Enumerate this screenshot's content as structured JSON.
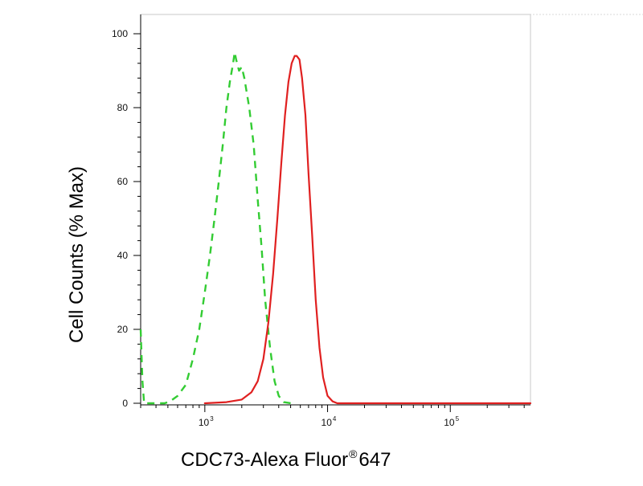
{
  "chart_data": {
    "type": "line",
    "xlabel": "CDC73-Alexa Fluor",
    "xlabel_superscript": "®",
    "xlabel_suffix": "647",
    "ylabel": "Cell Counts (% Max)",
    "xscale": "log",
    "xlim": [
      300,
      450000
    ],
    "ylim": [
      0,
      100
    ],
    "x_tick_labels": [
      {
        "value": 1000,
        "base": "10",
        "exp": "3"
      },
      {
        "value": 10000,
        "base": "10",
        "exp": "4"
      },
      {
        "value": 100000,
        "base": "10",
        "exp": "5"
      }
    ],
    "y_ticks": [
      0,
      20,
      40,
      60,
      80,
      100
    ],
    "grid": false,
    "legend": null,
    "series": [
      {
        "color": "#33cc33",
        "style": "dashed",
        "points": [
          [
            300,
            20
          ],
          [
            310,
            6
          ],
          [
            320,
            0
          ],
          [
            340,
            0
          ],
          [
            400,
            0
          ],
          [
            470,
            0
          ],
          [
            520,
            0.5
          ],
          [
            600,
            2
          ],
          [
            700,
            5
          ],
          [
            800,
            12
          ],
          [
            900,
            20
          ],
          [
            1000,
            30
          ],
          [
            1100,
            40
          ],
          [
            1200,
            50
          ],
          [
            1300,
            60
          ],
          [
            1400,
            70
          ],
          [
            1500,
            80
          ],
          [
            1600,
            87
          ],
          [
            1700,
            92
          ],
          [
            1750,
            95
          ],
          [
            1800,
            93
          ],
          [
            1900,
            90
          ],
          [
            2000,
            91
          ],
          [
            2100,
            88
          ],
          [
            2300,
            80
          ],
          [
            2500,
            70
          ],
          [
            2700,
            55
          ],
          [
            2900,
            42
          ],
          [
            3100,
            28
          ],
          [
            3400,
            15
          ],
          [
            3700,
            6
          ],
          [
            4000,
            2
          ],
          [
            4400,
            0.3
          ],
          [
            5000,
            0
          ]
        ]
      },
      {
        "color": "#e02020",
        "style": "solid",
        "points": [
          [
            1000,
            0
          ],
          [
            1500,
            0.3
          ],
          [
            2000,
            1
          ],
          [
            2400,
            3
          ],
          [
            2700,
            6
          ],
          [
            3000,
            12
          ],
          [
            3300,
            22
          ],
          [
            3600,
            35
          ],
          [
            3900,
            50
          ],
          [
            4200,
            65
          ],
          [
            4500,
            78
          ],
          [
            4800,
            87
          ],
          [
            5100,
            92
          ],
          [
            5400,
            94
          ],
          [
            5600,
            94
          ],
          [
            5900,
            93
          ],
          [
            6200,
            88
          ],
          [
            6600,
            78
          ],
          [
            7000,
            62
          ],
          [
            7500,
            45
          ],
          [
            8000,
            28
          ],
          [
            8600,
            15
          ],
          [
            9200,
            7
          ],
          [
            10000,
            2
          ],
          [
            11000,
            0.5
          ],
          [
            12000,
            0
          ],
          [
            50000,
            0
          ],
          [
            450000,
            0
          ]
        ]
      }
    ]
  }
}
